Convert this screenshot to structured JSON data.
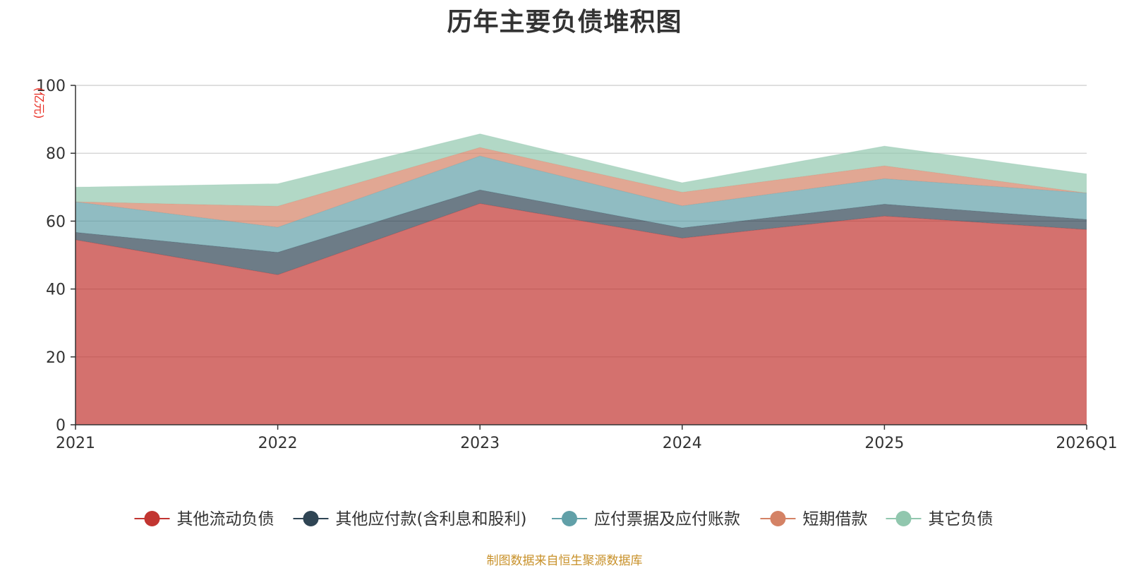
{
  "chart_data": {
    "type": "area",
    "stacked": true,
    "title": "历年主要负债堆积图",
    "ylabel": "(亿元)",
    "xlabel": "",
    "categories": [
      "2021",
      "2022",
      "2023",
      "2024",
      "2025",
      "2026Q1"
    ],
    "ylim": [
      0,
      100
    ],
    "yticks": [
      0,
      20,
      40,
      60,
      80,
      100
    ],
    "grid": true,
    "legend_position": "bottom",
    "series": [
      {
        "name": "其他流动负债",
        "color": "#c23531",
        "values": [
          54.5,
          44.2,
          65.2,
          55.0,
          61.5,
          57.5
        ]
      },
      {
        "name": "其他应付款(含利息和股利)",
        "color": "#2f4554",
        "values": [
          2.2,
          6.6,
          4.0,
          3.0,
          3.5,
          3.0
        ]
      },
      {
        "name": "应付票据及应付账款",
        "color": "#61a0a8",
        "values": [
          9.0,
          7.4,
          10.0,
          6.5,
          7.5,
          7.8
        ]
      },
      {
        "name": "短期借款",
        "color": "#d48265",
        "values": [
          0.0,
          6.2,
          2.5,
          4.0,
          3.8,
          0.0
        ]
      },
      {
        "name": "其它负债",
        "color": "#91c7ae",
        "values": [
          4.3,
          6.6,
          4.0,
          2.8,
          5.8,
          5.6
        ]
      }
    ],
    "source_note": "制图数据来自恒生聚源数据库"
  }
}
